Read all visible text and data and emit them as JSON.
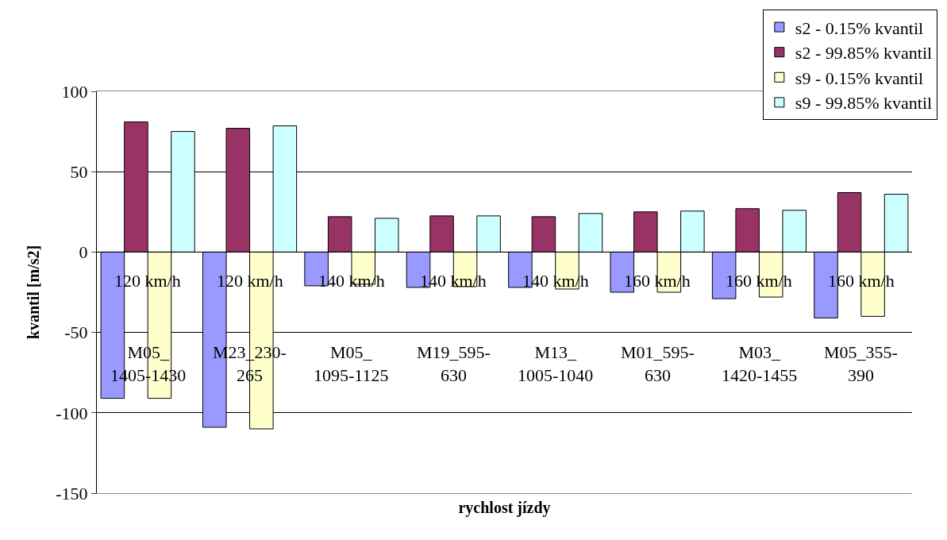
{
  "chart_data": {
    "type": "bar",
    "xlabel": "rychlost jízdy",
    "ylabel": "kvantil [m/s2]",
    "categories": [
      "120 km/h\nM05_\n1405-1430",
      "120 km/h\nM23_230-\n265",
      "140 km/h\nM05_\n1095-1125",
      "140 km/h\nM19_595-\n630",
      "140 km/h\nM13_\n1005-1040",
      "160 km/h\nM01_595-\n630",
      "160 km/h\nM03_\n1420-1455",
      "160 km/h\nM05_355-\n390"
    ],
    "series": [
      {
        "name": "s2 - 0.15% kvantil",
        "color": "#9999ff",
        "values": [
          -91,
          -109,
          -21,
          -22,
          -22,
          -25,
          -29,
          -41
        ]
      },
      {
        "name": "s2 - 99.85% kvantil",
        "color": "#993366",
        "values": [
          81,
          77,
          22,
          22.5,
          22,
          25,
          27,
          37
        ]
      },
      {
        "name": "s9 - 0.15% kvantil",
        "color": "#ffffcc",
        "values": [
          -91,
          -110,
          -20,
          -21.5,
          -23,
          -25,
          -28,
          -40
        ]
      },
      {
        "name": "s9 - 99.85% kvantil",
        "color": "#ccffff",
        "values": [
          75,
          78.5,
          21,
          22.5,
          24,
          25.5,
          26,
          36
        ]
      }
    ],
    "ylim": [
      -150,
      100
    ],
    "yticks": [
      -150,
      -100,
      -50,
      0,
      50,
      100
    ],
    "grid": "y",
    "legend": "top right"
  }
}
